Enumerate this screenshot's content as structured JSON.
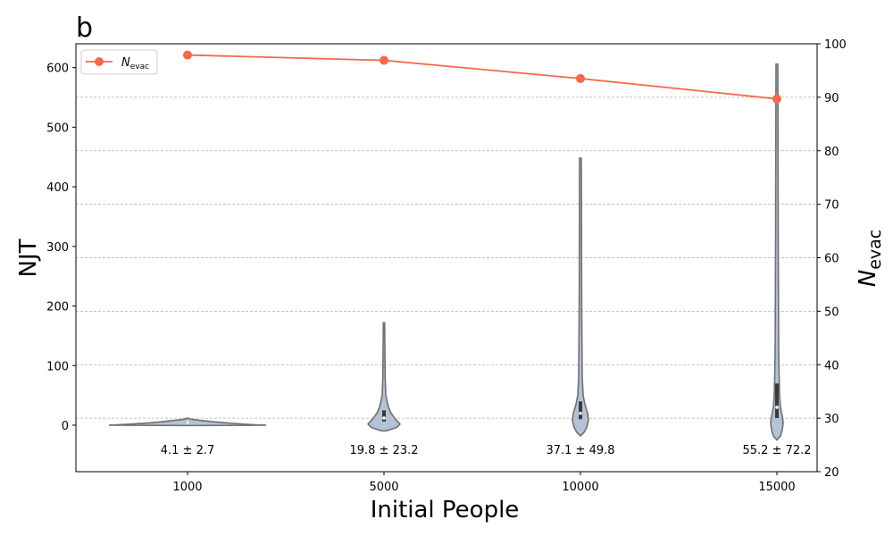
{
  "chart_data": {
    "type": "violin",
    "panel_label": "b",
    "xlabel": "Initial People",
    "ylabel_left": "NJT",
    "ylabel_right_base": "N",
    "ylabel_right_sub": "evac",
    "categories": [
      "1000",
      "5000",
      "10000",
      "15000"
    ],
    "ylim_left": [
      -78,
      640
    ],
    "yticks_left": [
      0,
      100,
      200,
      300,
      400,
      500,
      600
    ],
    "ylim_right": [
      20,
      100
    ],
    "yticks_right": [
      20,
      30,
      40,
      50,
      60,
      70,
      80,
      90,
      100
    ],
    "violins": [
      {
        "category": "1000",
        "min": 0,
        "max": 12,
        "median": 4,
        "q1": 2,
        "q3": 6
      },
      {
        "category": "5000",
        "min": -10,
        "max": 172,
        "median": 12,
        "q1": 6,
        "q3": 25
      },
      {
        "category": "10000",
        "min": -18,
        "max": 448,
        "median": 20,
        "q1": 10,
        "q3": 40
      },
      {
        "category": "15000",
        "min": -25,
        "max": 606,
        "median": 30,
        "q1": 12,
        "q3": 70
      }
    ],
    "annotations": [
      "4.1 ± 2.7",
      "19.8 ± 23.2",
      "37.1 ± 49.8",
      "55.2 ± 72.2"
    ],
    "series": [
      {
        "name_base": "N",
        "name_sub": "evac",
        "axis": "right",
        "color": "#f4694a",
        "values": [
          97.9,
          96.9,
          93.5,
          89.7
        ]
      }
    ],
    "grid": "horizontal dashed",
    "legend_position": "top-left",
    "colors": {
      "violin_fill": "#b4c2d8",
      "violin_edge": "#6f6f6f",
      "line": "#f4694a",
      "grid": "#b0b0b0"
    }
  }
}
